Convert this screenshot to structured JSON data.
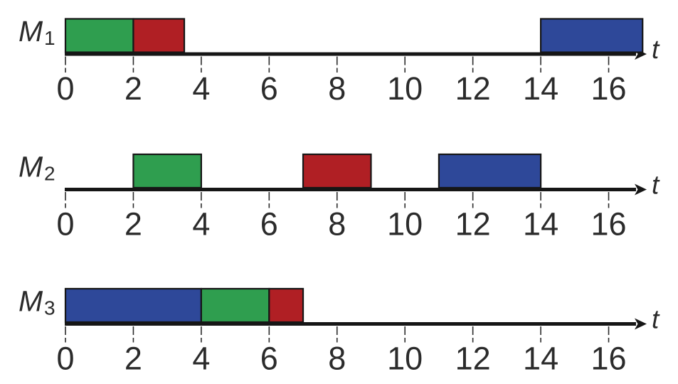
{
  "chart_data": {
    "type": "gantt",
    "title": "",
    "x_axis": {
      "label": "t",
      "min": 0,
      "max": 17,
      "ticks": [
        0,
        2,
        4,
        6,
        8,
        10,
        12,
        14,
        16
      ]
    },
    "colors": {
      "green_job": "#2f9e4f",
      "red_job": "#b01f24",
      "blue_job": "#2e4899",
      "axis": "#161616",
      "text": "#2b2b2b"
    },
    "machines": [
      {
        "name": "M1",
        "label_base": "M",
        "label_sub": "1",
        "blocks": [
          {
            "color_key": "green_job",
            "start": 0,
            "end": 2
          },
          {
            "color_key": "red_job",
            "start": 2,
            "end": 3.5
          },
          {
            "color_key": "blue_job",
            "start": 14,
            "end": 17
          }
        ]
      },
      {
        "name": "M2",
        "label_base": "M",
        "label_sub": "2",
        "blocks": [
          {
            "color_key": "green_job",
            "start": 2,
            "end": 4
          },
          {
            "color_key": "red_job",
            "start": 7,
            "end": 9
          },
          {
            "color_key": "blue_job",
            "start": 11,
            "end": 14
          }
        ]
      },
      {
        "name": "M3",
        "label_base": "M",
        "label_sub": "3",
        "blocks": [
          {
            "color_key": "blue_job",
            "start": 0,
            "end": 4
          },
          {
            "color_key": "green_job",
            "start": 4,
            "end": 6
          },
          {
            "color_key": "red_job",
            "start": 6,
            "end": 7
          }
        ]
      }
    ]
  }
}
